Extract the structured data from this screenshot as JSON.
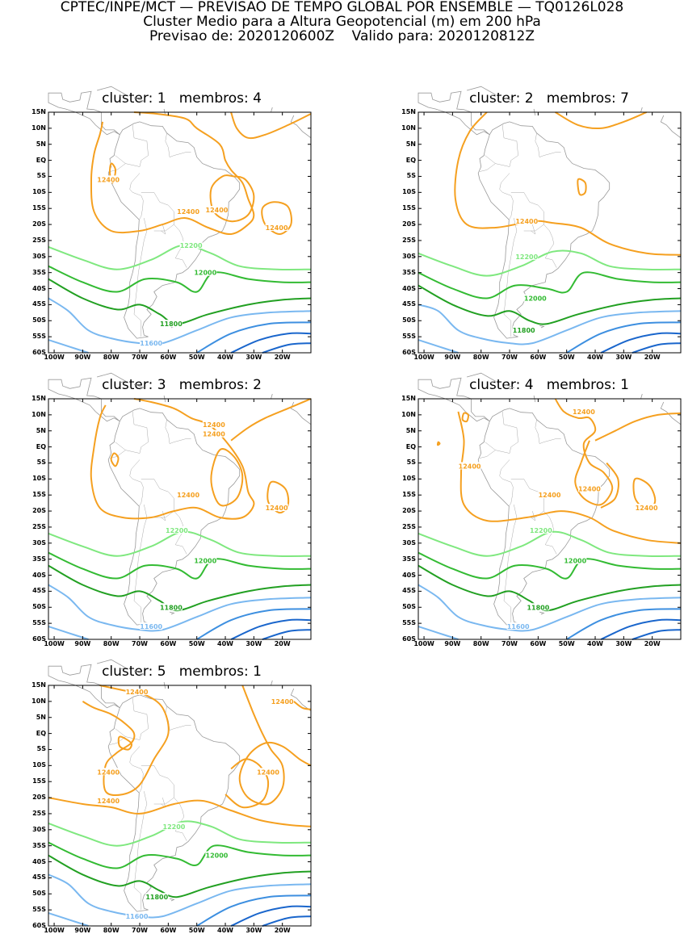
{
  "header": {
    "line1": "CPTEC/INPE/MCT — PREVISAO DE TEMPO GLOBAL POR ENSEMBLE — TQ0126L028",
    "line2": "Cluster Medio para a Altura Geopotencial (m) em 200 hPa",
    "line3": "Previsao de: 2020120600Z    Valido para: 2020120812Z"
  },
  "axes": {
    "lat_labels": [
      "15N",
      "10N",
      "5N",
      "EQ",
      "5S",
      "10S",
      "15S",
      "20S",
      "25S",
      "30S",
      "35S",
      "40S",
      "45S",
      "50S",
      "55S",
      "60S"
    ],
    "lon_labels": [
      "100W",
      "90W",
      "80W",
      "70W",
      "60W",
      "50W",
      "40W",
      "30W",
      "20W"
    ]
  },
  "colors": {
    "c12400": "#f5a020",
    "c12200": "#7fe87f",
    "c12000": "#33bb33",
    "c11800": "#22a022",
    "c11600": "#7ab8f0",
    "c11400": "#3d8fe0",
    "c11200": "#1a66cc"
  },
  "panels": [
    {
      "title": "cluster: 1   membros: 4",
      "labels": [
        {
          "text": "12400",
          "lon": -81,
          "lat": -6,
          "color": "c12400"
        },
        {
          "text": "12400",
          "lon": -43,
          "lat": -15.5,
          "color": "c12400"
        },
        {
          "text": "12400",
          "lon": -53,
          "lat": -16,
          "color": "c12400"
        },
        {
          "text": "12400",
          "lon": -22,
          "lat": -21,
          "color": "c12400"
        },
        {
          "text": "12200",
          "lon": -52,
          "lat": -26.5,
          "color": "c12200"
        },
        {
          "text": "12000",
          "lon": -47,
          "lat": -35,
          "color": "c12000"
        },
        {
          "text": "11800",
          "lon": -59,
          "lat": -51,
          "color": "c11800"
        },
        {
          "text": "11600",
          "lon": -66,
          "lat": -57,
          "color": "c11600"
        }
      ]
    },
    {
      "title": "cluster: 2   membros: 7",
      "labels": [
        {
          "text": "12400",
          "lon": -64,
          "lat": -19,
          "color": "c12400"
        },
        {
          "text": "12200",
          "lon": -64,
          "lat": -30,
          "color": "c12200"
        },
        {
          "text": "12000",
          "lon": -61,
          "lat": -43,
          "color": "c12000"
        },
        {
          "text": "11800",
          "lon": -65,
          "lat": -53,
          "color": "c11800"
        }
      ]
    },
    {
      "title": "cluster: 3   membros: 2",
      "labels": [
        {
          "text": "12400",
          "lon": -44,
          "lat": 7,
          "color": "c12400"
        },
        {
          "text": "12400",
          "lon": -44,
          "lat": 4,
          "color": "c12400"
        },
        {
          "text": "12400",
          "lon": -53,
          "lat": -15,
          "color": "c12400"
        },
        {
          "text": "12400",
          "lon": -22,
          "lat": -19,
          "color": "c12400"
        },
        {
          "text": "12200",
          "lon": -57,
          "lat": -26,
          "color": "c12200"
        },
        {
          "text": "12000",
          "lon": -47,
          "lat": -35.5,
          "color": "c12000"
        },
        {
          "text": "11800",
          "lon": -59,
          "lat": -50,
          "color": "c11800"
        },
        {
          "text": "11600",
          "lon": -66,
          "lat": -56,
          "color": "c11600"
        }
      ]
    },
    {
      "title": "cluster: 4   membros: 1",
      "labels": [
        {
          "text": "12400",
          "lon": -44,
          "lat": 11,
          "color": "c12400"
        },
        {
          "text": "12400",
          "lon": -84,
          "lat": -6,
          "color": "c12400"
        },
        {
          "text": "12400",
          "lon": -42,
          "lat": -13,
          "color": "c12400"
        },
        {
          "text": "12400",
          "lon": -56,
          "lat": -15,
          "color": "c12400"
        },
        {
          "text": "12400",
          "lon": -22,
          "lat": -19,
          "color": "c12400"
        },
        {
          "text": "12200",
          "lon": -59,
          "lat": -26,
          "color": "c12200"
        },
        {
          "text": "12000",
          "lon": -47,
          "lat": -35.5,
          "color": "c12000"
        },
        {
          "text": "11800",
          "lon": -60,
          "lat": -50,
          "color": "c11800"
        },
        {
          "text": "11600",
          "lon": -67,
          "lat": -56,
          "color": "c11600"
        }
      ]
    },
    {
      "title": "cluster: 5   membros: 1",
      "labels": [
        {
          "text": "12400",
          "lon": -71,
          "lat": 13,
          "color": "c12400"
        },
        {
          "text": "12400",
          "lon": -20,
          "lat": 10,
          "color": "c12400"
        },
        {
          "text": "12400",
          "lon": -81,
          "lat": -12,
          "color": "c12400"
        },
        {
          "text": "12400",
          "lon": -25,
          "lat": -12,
          "color": "c12400"
        },
        {
          "text": "12400",
          "lon": -81,
          "lat": -21,
          "color": "c12400"
        },
        {
          "text": "12200",
          "lon": -58,
          "lat": -29,
          "color": "c12200"
        },
        {
          "text": "12000",
          "lon": -43,
          "lat": -38,
          "color": "c12000"
        },
        {
          "text": "11800",
          "lon": -64,
          "lat": -51,
          "color": "c11800"
        },
        {
          "text": "11600",
          "lon": -71,
          "lat": -57,
          "color": "c11600"
        }
      ]
    }
  ]
}
